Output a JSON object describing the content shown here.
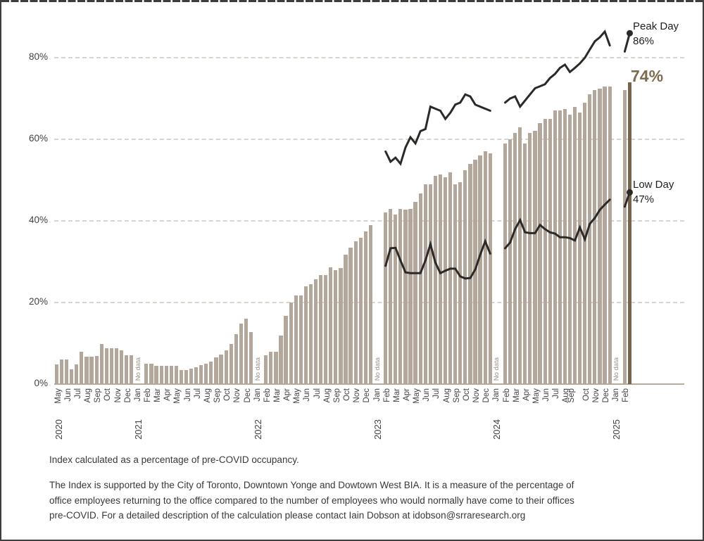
{
  "chart_data": {
    "type": "bar+line",
    "description": "Office occupancy index: bars = index (2 per month), lines = Peak Day and Low Day",
    "unit": "%",
    "ylim": [
      0,
      90
    ],
    "grid": "dashed horizontal",
    "y_axis": {
      "ticks": [
        {
          "label": "0%",
          "value": 0
        },
        {
          "label": "20%",
          "value": 20
        },
        {
          "label": "40%",
          "value": 40
        },
        {
          "label": "60%",
          "value": 60
        },
        {
          "label": "80%",
          "value": 80
        }
      ]
    },
    "no_data_label": "No data",
    "x_axis": {
      "months": [
        {
          "label": "May",
          "year": "2020",
          "bars": [
            4.8,
            6
          ]
        },
        {
          "label": "Jun",
          "bars": [
            6,
            3.6
          ]
        },
        {
          "label": "Jul",
          "bars": [
            4.8,
            7.9
          ]
        },
        {
          "label": "Aug",
          "bars": [
            6.7,
            6.7
          ]
        },
        {
          "label": "Sep",
          "bars": [
            6.9,
            9.8
          ]
        },
        {
          "label": "Oct",
          "bars": [
            8.8,
            8.8
          ]
        },
        {
          "label": "Nov",
          "bars": [
            8.8,
            8.3
          ]
        },
        {
          "label": "Dec",
          "bars": [
            7,
            7
          ]
        },
        {
          "label": "Jan",
          "year": "2021",
          "no_data": true
        },
        {
          "label": "Feb",
          "bars": [
            5,
            5
          ]
        },
        {
          "label": "Mar",
          "bars": [
            4.4,
            4.4
          ]
        },
        {
          "label": "Apr",
          "bars": [
            4.4,
            4.4
          ]
        },
        {
          "label": "May",
          "bars": [
            4.4,
            3.5
          ]
        },
        {
          "label": "Jun",
          "bars": [
            3.5,
            3.8
          ]
        },
        {
          "label": "Jul",
          "bars": [
            4.2,
            4.6
          ]
        },
        {
          "label": "Aug",
          "bars": [
            5,
            5.6
          ]
        },
        {
          "label": "Sep",
          "bars": [
            6.5,
            7.3
          ]
        },
        {
          "label": "Oct",
          "bars": [
            8.2,
            9.9
          ]
        },
        {
          "label": "Nov",
          "bars": [
            12.2,
            14.8
          ]
        },
        {
          "label": "Dec",
          "bars": [
            16,
            12.8
          ]
        },
        {
          "label": "Jan",
          "year": "2022",
          "no_data": true
        },
        {
          "label": "Feb",
          "bars": [
            7,
            7.9
          ]
        },
        {
          "label": "Mar",
          "bars": [
            7.9,
            11.9
          ]
        },
        {
          "label": "Apr",
          "bars": [
            16.8,
            20
          ]
        },
        {
          "label": "May",
          "bars": [
            21.8,
            21.8
          ]
        },
        {
          "label": "Jun",
          "bars": [
            24,
            24.5
          ]
        },
        {
          "label": "Jul",
          "bars": [
            25.7,
            26.7
          ]
        },
        {
          "label": "Aug",
          "bars": [
            26.7,
            28.7
          ]
        },
        {
          "label": "Sep",
          "bars": [
            27.9,
            28.5
          ]
        },
        {
          "label": "Oct",
          "bars": [
            31.8,
            33.5
          ]
        },
        {
          "label": "Nov",
          "bars": [
            35,
            35.8
          ]
        },
        {
          "label": "Dec",
          "bars": [
            37.5,
            39
          ]
        },
        {
          "label": "Jan",
          "year": "2023",
          "no_data": true
        },
        {
          "label": "Feb",
          "bars": [
            42,
            43
          ]
        },
        {
          "label": "Mar",
          "bars": [
            41.6,
            43
          ]
        },
        {
          "label": "Apr",
          "bars": [
            42.8,
            43
          ]
        },
        {
          "label": "May",
          "bars": [
            44.7,
            46.7
          ]
        },
        {
          "label": "Jun",
          "bars": [
            48.9,
            49
          ]
        },
        {
          "label": "Jul",
          "bars": [
            51,
            51.3
          ]
        },
        {
          "label": "Aug",
          "bars": [
            50.7,
            51.9
          ]
        },
        {
          "label": "Sep",
          "bars": [
            49,
            49.5
          ]
        },
        {
          "label": "Oct",
          "bars": [
            52.5,
            54
          ]
        },
        {
          "label": "Nov",
          "bars": [
            55,
            56
          ]
        },
        {
          "label": "Dec",
          "bars": [
            57,
            56.5
          ]
        },
        {
          "label": "Jan",
          "year": "2024",
          "no_data": true
        },
        {
          "label": "Feb",
          "bars": [
            59,
            60
          ]
        },
        {
          "label": "Mar",
          "bars": [
            61.5,
            63
          ]
        },
        {
          "label": "Apr",
          "bars": [
            59,
            61.5
          ]
        },
        {
          "label": "May",
          "bars": [
            62,
            64
          ]
        },
        {
          "label": "Jun",
          "bars": [
            65,
            65
          ]
        },
        {
          "label": "Jul",
          "bars": [
            67,
            67
          ]
        },
        {
          "label": "Aug",
          "bars": [
            67.5,
            66
          ]
        },
        {
          "label": "Sep",
          "label_dx": -7,
          "bars": [
            68,
            66.5
          ]
        },
        {
          "label": "Oct",
          "bars": [
            69,
            71
          ]
        },
        {
          "label": "Nov",
          "bars": [
            72,
            72.5
          ]
        },
        {
          "label": "Dec",
          "bars": [
            73,
            73
          ]
        },
        {
          "label": "Jan",
          "year": "2025",
          "no_data": true
        },
        {
          "label": "Feb",
          "bars": [
            72,
            74
          ],
          "highlight_last": true
        }
      ]
    },
    "series": [
      {
        "name": "Peak Day",
        "segments": [
          {
            "start_slot": 66,
            "values": [
              57,
              54.5,
              55.5,
              54,
              58,
              60.5,
              59,
              62,
              62.5,
              68,
              67.5,
              67,
              65,
              66.5,
              68.5,
              69,
              71,
              70.5,
              68.5,
              68,
              67.5,
              67
            ]
          },
          {
            "start_slot": 90,
            "values": [
              69,
              70,
              70.5,
              68,
              69.5,
              71,
              72.5,
              73,
              73.5,
              75,
              76,
              77.5,
              78.3,
              76.5,
              77.5,
              78.6,
              80,
              82,
              84,
              85,
              86.4,
              83
            ]
          },
          {
            "start_slot": 114,
            "values": [
              81.5,
              86
            ],
            "end_dot": true
          }
        ]
      },
      {
        "name": "Low Day",
        "segments": [
          {
            "start_slot": 66,
            "values": [
              29,
              33.3,
              33.4,
              30.3,
              27.4,
              27.2,
              27.2,
              27.2,
              30.3,
              34.3,
              29.8,
              27.2,
              27.8,
              28.3,
              28.3,
              26.4,
              25.9,
              26,
              28.1,
              31.7,
              35,
              32
            ]
          },
          {
            "start_slot": 90,
            "values": [
              33.3,
              34.7,
              38,
              40.2,
              37.2,
              37,
              37,
              39,
              38,
              37.2,
              36.9,
              36,
              36,
              35.8,
              35.2,
              38.4,
              35.5,
              39.3,
              40.7,
              42.7,
              44,
              45.2
            ]
          },
          {
            "start_slot": 114,
            "values": [
              43.5,
              47
            ],
            "end_dot": true
          }
        ]
      }
    ],
    "annotations": {
      "peak_title": "Peak Day",
      "peak_value": "86%",
      "low_title": "Low Day",
      "low_value": "47%",
      "final_bar": "74%"
    },
    "colors": {
      "bar": "#b2a79a",
      "highlight_bar": "#75654a",
      "line": "#2b2a28",
      "gridline": "#d9d5cd",
      "baseline": "#b7ac9c",
      "axis_text": "#424242",
      "no_data_text": "#9c9183",
      "final_label_text": "#7d6b4f"
    }
  },
  "footer": {
    "note": "Index calculated as a percentage of pre-COVID occupancy.",
    "description": "The Index is supported by the City of Toronto, Downtown Yonge and Dowtown West BIA. It is a measure of the percentage of office employees returning to the office compared to the number of employees who would normally have come to their offices pre-COVID. For a detailed description of the calculation please contact Iain Dobson at idobson@srraresearch.org"
  }
}
